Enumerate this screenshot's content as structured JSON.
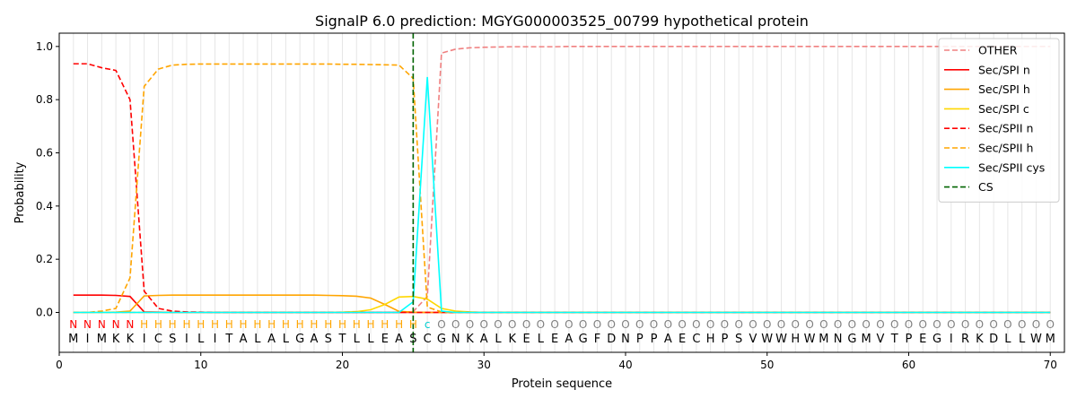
{
  "chart_data": {
    "type": "line",
    "title": "SignalP 6.0 prediction: MGYG000003525_00799 hypothetical protein",
    "xlabel": "Protein sequence",
    "ylabel": "Probability",
    "xlim": [
      0,
      71
    ],
    "ylim": [
      -0.15,
      1.05
    ],
    "xticks": [
      0,
      10,
      20,
      30,
      40,
      50,
      60,
      70
    ],
    "yticks": [
      "0.0",
      "0.2",
      "0.4",
      "0.6",
      "0.8",
      "1.0"
    ],
    "ytick_values": [
      0.0,
      0.2,
      0.4,
      0.6,
      0.8,
      1.0
    ],
    "grid": "vertical lines at each residue",
    "legend_position": "top-right",
    "sequence": [
      "M",
      "I",
      "M",
      "K",
      "K",
      "I",
      "C",
      "S",
      "I",
      "L",
      "I",
      "T",
      "A",
      "L",
      "A",
      "L",
      "G",
      "A",
      "S",
      "T",
      "L",
      "L",
      "E",
      "A",
      "S",
      "C",
      "G",
      "N",
      "K",
      "A",
      "L",
      "K",
      "E",
      "L",
      "E",
      "A",
      "G",
      "F",
      "D",
      "N",
      "P",
      "P",
      "A",
      "E",
      "C",
      "H",
      "P",
      "S",
      "V",
      "W",
      "W",
      "H",
      "W",
      "M",
      "N",
      "G",
      "M",
      "V",
      "T",
      "P",
      "E",
      "G",
      "I",
      "R",
      "K",
      "D",
      "L",
      "L",
      "W",
      "M"
    ],
    "region_labels": [
      "N",
      "N",
      "N",
      "N",
      "N",
      "H",
      "H",
      "H",
      "H",
      "H",
      "H",
      "H",
      "H",
      "H",
      "H",
      "H",
      "H",
      "H",
      "H",
      "H",
      "H",
      "H",
      "H",
      "H",
      "H",
      "c",
      "O",
      "O",
      "O",
      "O",
      "O",
      "O",
      "O",
      "O",
      "O",
      "O",
      "O",
      "O",
      "O",
      "O",
      "O",
      "O",
      "O",
      "O",
      "O",
      "O",
      "O",
      "O",
      "O",
      "O",
      "O",
      "O",
      "O",
      "O",
      "O",
      "O",
      "O",
      "O",
      "O",
      "O",
      "O",
      "O",
      "O",
      "O",
      "O",
      "O",
      "O",
      "O",
      "O",
      "O"
    ],
    "region_colors": {
      "N": "#ff0000",
      "H": "#ffa500",
      "c": "#00ced1",
      "O": "#808080"
    },
    "cleavage_site": 25,
    "series": [
      {
        "name": "OTHER",
        "color": "#f08080",
        "dash": "dashed",
        "values": [
          0.0,
          0.0,
          0.0,
          0.0,
          0.0,
          0.0,
          0.0,
          0.0,
          0.0,
          0.0,
          0.0,
          0.0,
          0.0,
          0.0,
          0.0,
          0.0,
          0.0,
          0.0,
          0.0,
          0.0,
          0.0,
          0.0,
          0.0,
          0.0,
          0.003,
          0.06,
          0.975,
          0.99,
          0.995,
          0.997,
          0.998,
          0.999,
          0.999,
          0.999,
          0.999,
          1.0,
          1.0,
          1.0,
          1.0,
          1.0,
          1.0,
          1.0,
          1.0,
          1.0,
          1.0,
          1.0,
          1.0,
          1.0,
          1.0,
          1.0,
          1.0,
          1.0,
          1.0,
          1.0,
          1.0,
          1.0,
          1.0,
          1.0,
          1.0,
          1.0,
          1.0,
          1.0,
          1.0,
          1.0,
          1.0,
          1.0,
          1.0,
          1.0,
          1.0,
          1.0
        ]
      },
      {
        "name": "Sec/SPI n",
        "color": "#ff0000",
        "dash": "solid",
        "values": [
          0.065,
          0.065,
          0.065,
          0.064,
          0.06,
          0.002,
          0.001,
          0.0,
          0.0,
          0.0,
          0.0,
          0.0,
          0.0,
          0.0,
          0.0,
          0.0,
          0.0,
          0.0,
          0.0,
          0.0,
          0.0,
          0.0,
          0.0,
          0.0,
          0.0,
          0.0,
          0.0,
          0.0,
          0.0,
          0.0,
          0.0,
          0.0,
          0.0,
          0.0,
          0.0,
          0.0,
          0.0,
          0.0,
          0.0,
          0.0,
          0.0,
          0.0,
          0.0,
          0.0,
          0.0,
          0.0,
          0.0,
          0.0,
          0.0,
          0.0,
          0.0,
          0.0,
          0.0,
          0.0,
          0.0,
          0.0,
          0.0,
          0.0,
          0.0,
          0.0,
          0.0,
          0.0,
          0.0,
          0.0,
          0.0,
          0.0,
          0.0,
          0.0,
          0.0,
          0.0
        ]
      },
      {
        "name": "Sec/SPI h",
        "color": "#ffa500",
        "dash": "solid",
        "values": [
          0.0,
          0.0,
          0.0,
          0.001,
          0.005,
          0.062,
          0.064,
          0.065,
          0.065,
          0.065,
          0.065,
          0.065,
          0.065,
          0.065,
          0.065,
          0.065,
          0.065,
          0.065,
          0.064,
          0.063,
          0.061,
          0.054,
          0.03,
          0.004,
          0.001,
          0.0,
          0.0,
          0.0,
          0.0,
          0.0,
          0.0,
          0.0,
          0.0,
          0.0,
          0.0,
          0.0,
          0.0,
          0.0,
          0.0,
          0.0,
          0.0,
          0.0,
          0.0,
          0.0,
          0.0,
          0.0,
          0.0,
          0.0,
          0.0,
          0.0,
          0.0,
          0.0,
          0.0,
          0.0,
          0.0,
          0.0,
          0.0,
          0.0,
          0.0,
          0.0,
          0.0,
          0.0,
          0.0,
          0.0,
          0.0,
          0.0,
          0.0,
          0.0,
          0.0,
          0.0
        ]
      },
      {
        "name": "Sec/SPI c",
        "color": "#ffd700",
        "dash": "solid",
        "values": [
          0.0,
          0.0,
          0.0,
          0.0,
          0.0,
          0.0,
          0.0,
          0.0,
          0.0,
          0.0,
          0.0,
          0.0,
          0.0,
          0.0,
          0.0,
          0.0,
          0.0,
          0.0,
          0.0,
          0.001,
          0.003,
          0.01,
          0.03,
          0.058,
          0.06,
          0.05,
          0.015,
          0.005,
          0.002,
          0.0,
          0.0,
          0.0,
          0.0,
          0.0,
          0.0,
          0.0,
          0.0,
          0.0,
          0.0,
          0.0,
          0.0,
          0.0,
          0.0,
          0.0,
          0.0,
          0.0,
          0.0,
          0.0,
          0.0,
          0.0,
          0.0,
          0.0,
          0.0,
          0.0,
          0.0,
          0.0,
          0.0,
          0.0,
          0.0,
          0.0,
          0.0,
          0.0,
          0.0,
          0.0,
          0.0,
          0.0,
          0.0,
          0.0,
          0.0,
          0.0
        ]
      },
      {
        "name": "Sec/SPII n",
        "color": "#ff0000",
        "dash": "dashed",
        "values": [
          0.935,
          0.935,
          0.92,
          0.91,
          0.8,
          0.08,
          0.015,
          0.005,
          0.002,
          0.001,
          0.0,
          0.0,
          0.0,
          0.0,
          0.0,
          0.0,
          0.0,
          0.0,
          0.0,
          0.0,
          0.0,
          0.0,
          0.0,
          0.0,
          0.0,
          0.0,
          0.0,
          0.0,
          0.0,
          0.0,
          0.0,
          0.0,
          0.0,
          0.0,
          0.0,
          0.0,
          0.0,
          0.0,
          0.0,
          0.0,
          0.0,
          0.0,
          0.0,
          0.0,
          0.0,
          0.0,
          0.0,
          0.0,
          0.0,
          0.0,
          0.0,
          0.0,
          0.0,
          0.0,
          0.0,
          0.0,
          0.0,
          0.0,
          0.0,
          0.0,
          0.0,
          0.0,
          0.0,
          0.0,
          0.0,
          0.0,
          0.0,
          0.0,
          0.0,
          0.0
        ]
      },
      {
        "name": "Sec/SPII h",
        "color": "#ffa500",
        "dash": "dashed",
        "values": [
          0.0,
          0.0,
          0.005,
          0.015,
          0.13,
          0.85,
          0.915,
          0.93,
          0.933,
          0.934,
          0.934,
          0.934,
          0.934,
          0.934,
          0.934,
          0.934,
          0.934,
          0.934,
          0.934,
          0.933,
          0.933,
          0.932,
          0.931,
          0.93,
          0.88,
          0.02,
          0.002,
          0.0,
          0.0,
          0.0,
          0.0,
          0.0,
          0.0,
          0.0,
          0.0,
          0.0,
          0.0,
          0.0,
          0.0,
          0.0,
          0.0,
          0.0,
          0.0,
          0.0,
          0.0,
          0.0,
          0.0,
          0.0,
          0.0,
          0.0,
          0.0,
          0.0,
          0.0,
          0.0,
          0.0,
          0.0,
          0.0,
          0.0,
          0.0,
          0.0,
          0.0,
          0.0,
          0.0,
          0.0,
          0.0,
          0.0,
          0.0,
          0.0,
          0.0,
          0.0
        ]
      },
      {
        "name": "Sec/SPII cys",
        "color": "#00ffff",
        "dash": "solid",
        "values": [
          0.0,
          0.0,
          0.0,
          0.0,
          0.0,
          0.0,
          0.0,
          0.0,
          0.0,
          0.0,
          0.0,
          0.0,
          0.0,
          0.0,
          0.0,
          0.0,
          0.0,
          0.0,
          0.0,
          0.0,
          0.0,
          0.0,
          0.0,
          0.0,
          0.04,
          0.885,
          0.005,
          0.0,
          0.0,
          0.0,
          0.0,
          0.0,
          0.0,
          0.0,
          0.0,
          0.0,
          0.0,
          0.0,
          0.0,
          0.0,
          0.0,
          0.0,
          0.0,
          0.0,
          0.0,
          0.0,
          0.0,
          0.0,
          0.0,
          0.0,
          0.0,
          0.0,
          0.0,
          0.0,
          0.0,
          0.0,
          0.0,
          0.0,
          0.0,
          0.0,
          0.0,
          0.0,
          0.0,
          0.0,
          0.0,
          0.0,
          0.0,
          0.0,
          0.0,
          0.0
        ]
      }
    ],
    "cs_legend": {
      "name": "CS",
      "color": "#006400",
      "dash": "dashed"
    }
  }
}
